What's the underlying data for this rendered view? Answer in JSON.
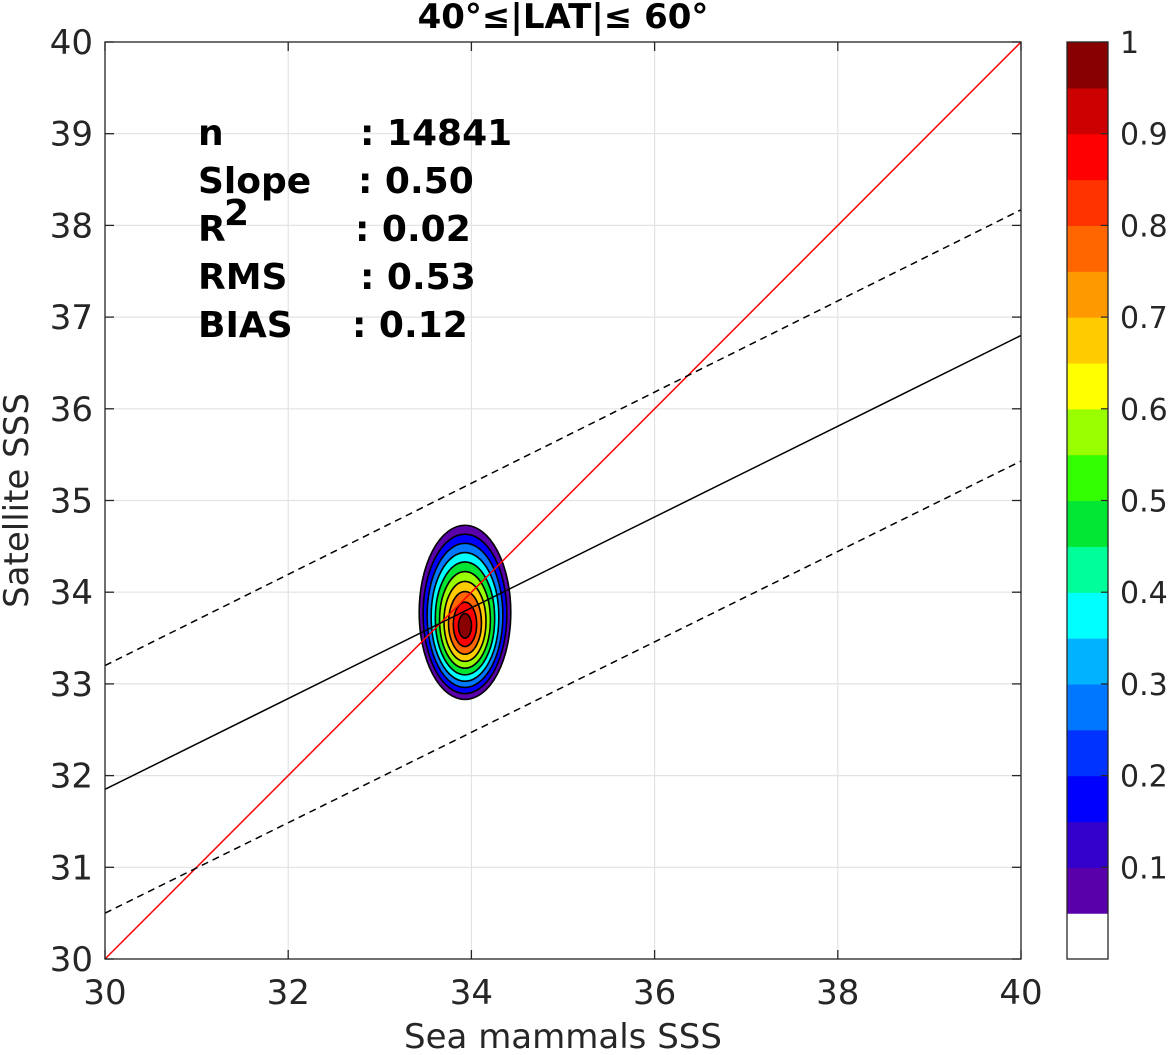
{
  "chart_data": {
    "type": "contour",
    "title": "40°≤|LAT|≤ 60°",
    "xlabel": "Sea mammals SSS",
    "ylabel": "Satellite SSS",
    "xlim": [
      30,
      40
    ],
    "ylim": [
      30,
      40
    ],
    "xticks": [
      "30",
      "32",
      "34",
      "36",
      "38",
      "40"
    ],
    "yticks": [
      "30",
      "31",
      "32",
      "33",
      "34",
      "35",
      "36",
      "37",
      "38",
      "39",
      "40"
    ],
    "grid": true,
    "stats": [
      {
        "label": "n",
        "value": ": 14841"
      },
      {
        "label": "Slope",
        "value": ": 0.50"
      },
      {
        "label": "R",
        "sup": "2",
        "value": ": 0.02"
      },
      {
        "label": "RMS",
        "value": ": 0.53"
      },
      {
        "label": "BIAS",
        "value": ": 0.12"
      }
    ],
    "lines": [
      {
        "name": "one-to-one",
        "style": "solid",
        "color": "#ff0000",
        "points": [
          [
            30,
            30
          ],
          [
            40,
            40
          ]
        ]
      },
      {
        "name": "fit",
        "style": "solid",
        "color": "#000000",
        "points": [
          [
            30,
            31.85
          ],
          [
            40,
            36.8
          ]
        ]
      },
      {
        "name": "fit-upper",
        "style": "dashed",
        "color": "#000000",
        "points": [
          [
            30,
            33.2
          ],
          [
            40,
            38.17
          ]
        ]
      },
      {
        "name": "fit-lower",
        "style": "dashed",
        "color": "#000000",
        "points": [
          [
            30,
            30.5
          ],
          [
            40,
            35.43
          ]
        ]
      }
    ],
    "density": {
      "center": [
        33.93,
        33.78
      ],
      "outer_half_width": [
        0.5,
        0.95
      ],
      "levels": [
        0.05,
        0.15,
        0.25,
        0.35,
        0.45,
        0.55,
        0.65,
        0.75,
        0.85,
        0.95
      ]
    },
    "colorbar": {
      "ticks": [
        "0.1",
        "0.2",
        "0.3",
        "0.4",
        "0.5",
        "0.6",
        "0.7",
        "0.8",
        "0.9",
        "1"
      ],
      "tick_values": [
        0.1,
        0.2,
        0.3,
        0.4,
        0.5,
        0.6,
        0.7,
        0.8,
        0.9,
        1.0
      ],
      "colors": [
        "#ffffff",
        "#5a00aa",
        "#3300cc",
        "#0000ff",
        "#0033ff",
        "#0077ff",
        "#00b2ff",
        "#00ffff",
        "#00ff99",
        "#00e633",
        "#33ff00",
        "#99ff00",
        "#ffff00",
        "#ffcc00",
        "#ff9900",
        "#ff6600",
        "#ff3300",
        "#ff0000",
        "#cc0000",
        "#880000"
      ]
    }
  }
}
